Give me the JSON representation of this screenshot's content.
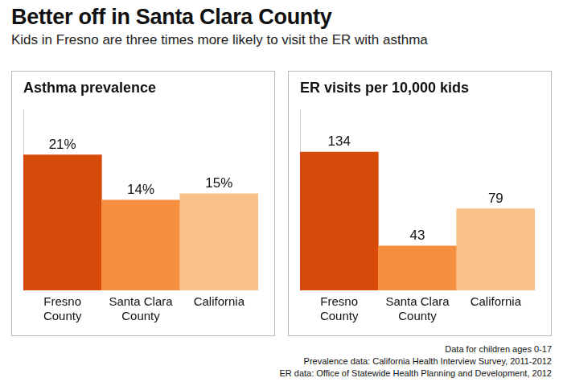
{
  "title": "Better off in Santa Clara County",
  "subtitle": "Kids in Fresno are three times more likely to visit the ER with asthma",
  "notes": [
    "Data for children ages 0-17",
    "Prevalence data: California Health Interview Survey, 2011-2012",
    "ER data: Office of Statewide Health Planning and Development, 2012"
  ],
  "chart_data": [
    {
      "type": "bar",
      "title": "Asthma prevalence",
      "categories": [
        "Fresno County",
        "Santa Clara County",
        "California"
      ],
      "values": [
        21,
        14,
        15
      ],
      "value_labels": [
        "21%",
        "14%",
        "15%"
      ],
      "colors": [
        "#d84a0a",
        "#f68e3f",
        "#f9c08a"
      ],
      "ylim": [
        0,
        28
      ],
      "grid": false,
      "data_labels": true,
      "tick_labels": "x"
    },
    {
      "type": "bar",
      "title": "ER visits per 10,000 kids",
      "categories": [
        "Fresno County",
        "Santa Clara County",
        "California"
      ],
      "values": [
        134,
        43,
        79
      ],
      "colors": [
        "#d84a0a",
        "#f68e3f",
        "#f9c08a"
      ],
      "ylim": [
        0,
        175
      ],
      "grid": false,
      "data_labels": true,
      "tick_labels": "x"
    }
  ]
}
